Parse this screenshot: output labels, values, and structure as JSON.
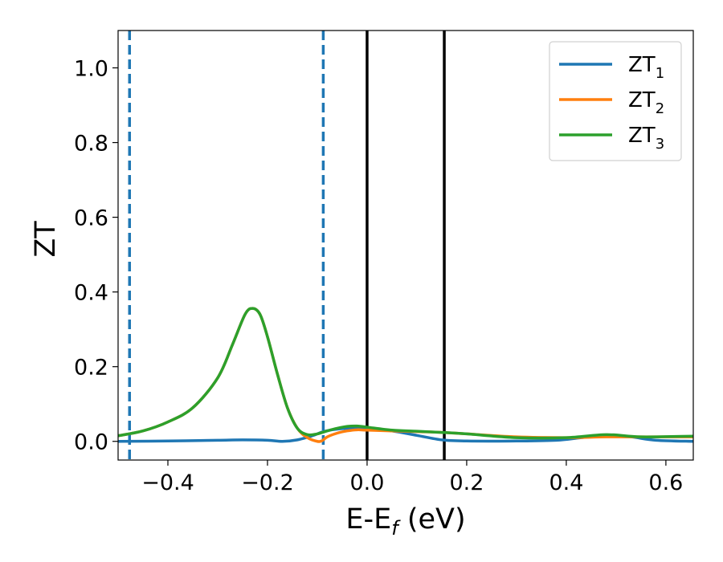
{
  "chart_data": {
    "type": "line",
    "xlabel": {
      "main": "E-E",
      "sub": "f",
      "tail": " (eV)"
    },
    "ylabel": "ZT",
    "xlim": [
      -0.5,
      0.655
    ],
    "ylim": [
      -0.05,
      1.1
    ],
    "xticks": [
      -0.4,
      -0.2,
      0.0,
      0.2,
      0.4,
      0.6
    ],
    "xtick_labels": [
      "−0.4",
      "−0.2",
      "0.0",
      "0.2",
      "0.4",
      "0.6"
    ],
    "yticks": [
      0.0,
      0.2,
      0.4,
      0.6,
      0.8,
      1.0
    ],
    "ytick_labels": [
      "0.0",
      "0.2",
      "0.4",
      "0.6",
      "0.8",
      "1.0"
    ],
    "grid": false,
    "legend_position": "top-right",
    "vlines": [
      {
        "x": -0.477,
        "style": "dashed",
        "color": "#1f77b4"
      },
      {
        "x": -0.088,
        "style": "dashed",
        "color": "#1f77b4"
      },
      {
        "x": 0.0,
        "style": "solid",
        "color": "#000000"
      },
      {
        "x": 0.155,
        "style": "solid",
        "color": "#000000"
      }
    ],
    "series": [
      {
        "name": "ZT",
        "sub": "1",
        "color": "#1f77b4",
        "x": [
          -0.5,
          -0.4,
          -0.3,
          -0.25,
          -0.2,
          -0.17,
          -0.14,
          -0.11,
          -0.09,
          -0.07,
          -0.04,
          0.0,
          0.05,
          0.1,
          0.15,
          0.2,
          0.3,
          0.38,
          0.43,
          0.48,
          0.53,
          0.58,
          0.655
        ],
        "y": [
          0.0,
          0.001,
          0.003,
          0.004,
          0.003,
          0.0,
          0.004,
          0.015,
          0.025,
          0.031,
          0.035,
          0.035,
          0.028,
          0.016,
          0.004,
          0.001,
          0.001,
          0.003,
          0.01,
          0.016,
          0.012,
          0.003,
          0.0
        ]
      },
      {
        "name": "ZT",
        "sub": "2",
        "color": "#ff7f0e",
        "x": [
          -0.5,
          -0.45,
          -0.4,
          -0.35,
          -0.3,
          -0.27,
          -0.245,
          -0.23,
          -0.215,
          -0.2,
          -0.18,
          -0.16,
          -0.14,
          -0.12,
          -0.1,
          -0.09,
          -0.08,
          -0.06,
          -0.04,
          -0.02,
          0.0,
          0.05,
          0.1,
          0.15,
          0.2,
          0.3,
          0.4,
          0.48,
          0.55,
          0.655
        ],
        "y": [
          0.015,
          0.028,
          0.052,
          0.09,
          0.17,
          0.26,
          0.34,
          0.356,
          0.34,
          0.28,
          0.18,
          0.09,
          0.035,
          0.01,
          0.0,
          0.002,
          0.012,
          0.022,
          0.028,
          0.031,
          0.03,
          0.028,
          0.026,
          0.024,
          0.02,
          0.012,
          0.01,
          0.012,
          0.012,
          0.012
        ]
      },
      {
        "name": "ZT",
        "sub": "3",
        "color": "#2ca02c",
        "x": [
          -0.5,
          -0.45,
          -0.4,
          -0.35,
          -0.3,
          -0.27,
          -0.245,
          -0.23,
          -0.215,
          -0.2,
          -0.18,
          -0.16,
          -0.14,
          -0.12,
          -0.1,
          -0.08,
          -0.06,
          -0.04,
          -0.02,
          0.0,
          0.05,
          0.1,
          0.15,
          0.2,
          0.3,
          0.4,
          0.48,
          0.55,
          0.655
        ],
        "y": [
          0.015,
          0.028,
          0.052,
          0.09,
          0.17,
          0.26,
          0.34,
          0.356,
          0.34,
          0.28,
          0.18,
          0.09,
          0.035,
          0.018,
          0.02,
          0.028,
          0.035,
          0.04,
          0.041,
          0.038,
          0.03,
          0.027,
          0.024,
          0.02,
          0.01,
          0.01,
          0.018,
          0.012,
          0.014
        ]
      }
    ]
  }
}
